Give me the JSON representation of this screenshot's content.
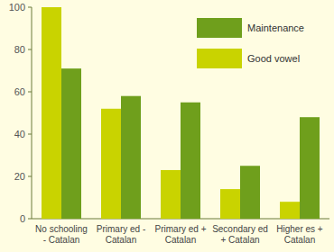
{
  "chart_data": {
    "type": "bar",
    "categories": [
      "No schooling\n- Catalan",
      "Primary ed -\nCatalan",
      "Primary ed +\nCatalan",
      "Secondary ed\n+ Catalan",
      "Higher es +\nCatalan"
    ],
    "series": [
      {
        "name": "Good vowel",
        "color": "#c9d300",
        "values": [
          100,
          52,
          23,
          14,
          8
        ]
      },
      {
        "name": "Maintenance",
        "color": "#6f9f1c",
        "values": [
          71,
          58,
          55,
          25,
          48
        ]
      }
    ],
    "ylim": [
      0,
      100
    ],
    "yticks": [
      0,
      20,
      40,
      60,
      80,
      100
    ],
    "grid": false,
    "legend": "top-right"
  }
}
